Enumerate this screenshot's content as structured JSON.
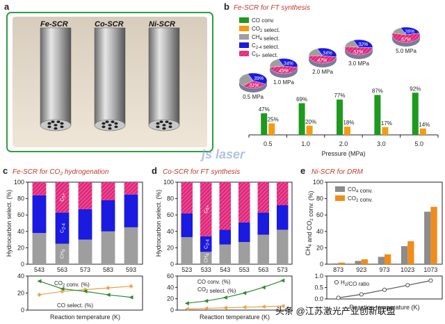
{
  "panels": {
    "a": {
      "label": "a",
      "tubes": [
        "Fe-SCR",
        "Co-SCR",
        "Ni-SCR"
      ],
      "border_color": "#2e9e45"
    },
    "b": {
      "label": "b",
      "title": "Fe-SCR for FT synthesis"
    },
    "c": {
      "label": "c",
      "title_prefix": "Fe-SCR for CO",
      "title_sub": "2",
      "title_suffix": " hydrogenation"
    },
    "d": {
      "label": "d",
      "title": "Co-SCR for FT synthesis"
    },
    "e": {
      "label": "e",
      "title": "Ni-SCR for DRM"
    }
  },
  "colors": {
    "co_conv": "#1e9a1e",
    "co2_select": "#f39c12",
    "ch4": "#9e9e9e",
    "c2_4": "#1a1ae0",
    "c5plus": "#e0287a",
    "orange_bar": "#f08c1a",
    "gray_bar": "#8c8c8c",
    "green_line": "#2e8b2e",
    "orange_line": "#e8a040"
  },
  "chart_data": [
    {
      "id": "b",
      "type": "bar",
      "title": "Fe-SCR for FT synthesis",
      "xlabel": "Pressure (MPa)",
      "categories": [
        "0.5",
        "1.0",
        "2.0",
        "3.0",
        "5.0"
      ],
      "series": [
        {
          "name": "CO conv.",
          "values": [
            47,
            69,
            77,
            87,
            92
          ],
          "labels": [
            "47%",
            "69%",
            "77%",
            "87%",
            "92%"
          ]
        },
        {
          "name": "CO2 select.",
          "values": [
            25,
            20,
            18,
            17,
            14
          ],
          "labels": [
            "25%",
            "20%",
            "18%",
            "17%",
            "14%"
          ]
        }
      ],
      "legend": [
        "CO conv.",
        "CO2 select.",
        "CH4 select.",
        "C2-4 select.",
        "C5+ select."
      ],
      "pies": [
        {
          "label": "0.5 MPa",
          "slices": [
            39,
            31,
            30
          ],
          "slice_labels": [
            "39%",
            "31%",
            ""
          ]
        },
        {
          "label": "1.0 MPa",
          "slices": [
            34,
            45,
            21
          ],
          "slice_labels": [
            "34%",
            "45%",
            ""
          ]
        },
        {
          "label": "2.0 MPa",
          "slices": [
            34,
            47,
            19
          ],
          "slice_labels": [
            "34%",
            "47%",
            ""
          ]
        },
        {
          "label": "3.0 MPa",
          "slices": [
            32,
            51,
            17
          ],
          "slice_labels": [
            "32%",
            "51%",
            ""
          ]
        },
        {
          "label": "5.0 MPa",
          "slices": [
            28,
            57,
            15
          ],
          "slice_labels": [
            "28%",
            "57%",
            ""
          ]
        }
      ]
    },
    {
      "id": "c",
      "type": "bar",
      "ylabel": "Hydrocarbon select. (%)",
      "xlabel": "Reaction temperature (K)",
      "categories": [
        "543",
        "563",
        "573",
        "583",
        "593"
      ],
      "ylim": [
        0,
        100
      ],
      "yticks": [
        0,
        20,
        40,
        60,
        80,
        100
      ],
      "series": [
        {
          "name": "CH4",
          "values": [
            38,
            25,
            30,
            40,
            45
          ]
        },
        {
          "name": "C2-4",
          "values": [
            46,
            38,
            37,
            38,
            40
          ]
        },
        {
          "name": "C5+",
          "values": [
            16,
            37,
            33,
            22,
            15
          ]
        }
      ],
      "bar_labels": {
        "CH4": "CH4",
        "C2-4": "C2-4",
        "C5+": "C5+"
      },
      "line_chart": {
        "ylim": [
          0,
          40
        ],
        "yticks": [
          0,
          20,
          40
        ],
        "series": [
          {
            "name": "CO2 conv. (%)",
            "values": [
              18,
              22,
              24,
              26,
              28
            ]
          },
          {
            "name": "CO select. (%)",
            "values": [
              34,
              25,
              22,
              18,
              15
            ]
          }
        ]
      }
    },
    {
      "id": "d",
      "type": "bar",
      "ylabel": "Hydrocarbon select. (%)",
      "xlabel": "Reaction temperature (K)",
      "categories": [
        "523",
        "533",
        "543",
        "553",
        "563",
        "573"
      ],
      "ylim": [
        0,
        100
      ],
      "yticks": [
        0,
        20,
        40,
        60,
        80,
        100
      ],
      "series": [
        {
          "name": "CH4",
          "values": [
            33,
            15,
            24,
            27,
            36,
            42
          ]
        },
        {
          "name": "C2-4",
          "values": [
            29,
            19,
            18,
            24,
            27,
            30
          ]
        },
        {
          "name": "C5+",
          "values": [
            38,
            66,
            58,
            49,
            37,
            28
          ]
        }
      ],
      "bar_labels": {
        "CH4": "CH4",
        "C2-4": "C2-4",
        "C5+": "C5+"
      },
      "line_chart": {
        "ylim": [
          0,
          60
        ],
        "yticks": [
          0,
          20,
          40,
          60
        ],
        "series": [
          {
            "name": "CO conv. (%)",
            "values": [
              12,
              16,
              22,
              30,
              40,
              52
            ]
          },
          {
            "name": "CO2 select. (%)",
            "values": [
              2,
              3,
              4,
              5,
              6,
              7
            ]
          }
        ]
      }
    },
    {
      "id": "e",
      "type": "bar",
      "title": "Ni-SCR for DRM",
      "ylabel": "CH4 and CO2 conv. (%)",
      "xlabel": "Reaction temperature (K)",
      "categories": [
        "873",
        "923",
        "973",
        "1023",
        "1073"
      ],
      "ylim": [
        0,
        100
      ],
      "yticks": [
        0,
        20,
        40,
        60,
        80,
        100
      ],
      "series": [
        {
          "name": "CO4 conv.",
          "values": [
            1,
            4,
            9,
            22,
            64
          ]
        },
        {
          "name": "CO2 conv.",
          "values": [
            2,
            6,
            12,
            28,
            70
          ]
        }
      ],
      "line_chart": {
        "ylim": [
          0,
          1.0
        ],
        "yticks": [
          "0.0",
          "0.5",
          "1.0"
        ],
        "series": [
          {
            "name": "H2/CO ratio",
            "values": [
              0.05,
              0.2,
              0.4,
              0.6,
              0.8
            ]
          }
        ]
      }
    }
  ],
  "watermark": {
    "logo": "js laser",
    "text": "头条 @江苏激光产业创新联盟"
  }
}
